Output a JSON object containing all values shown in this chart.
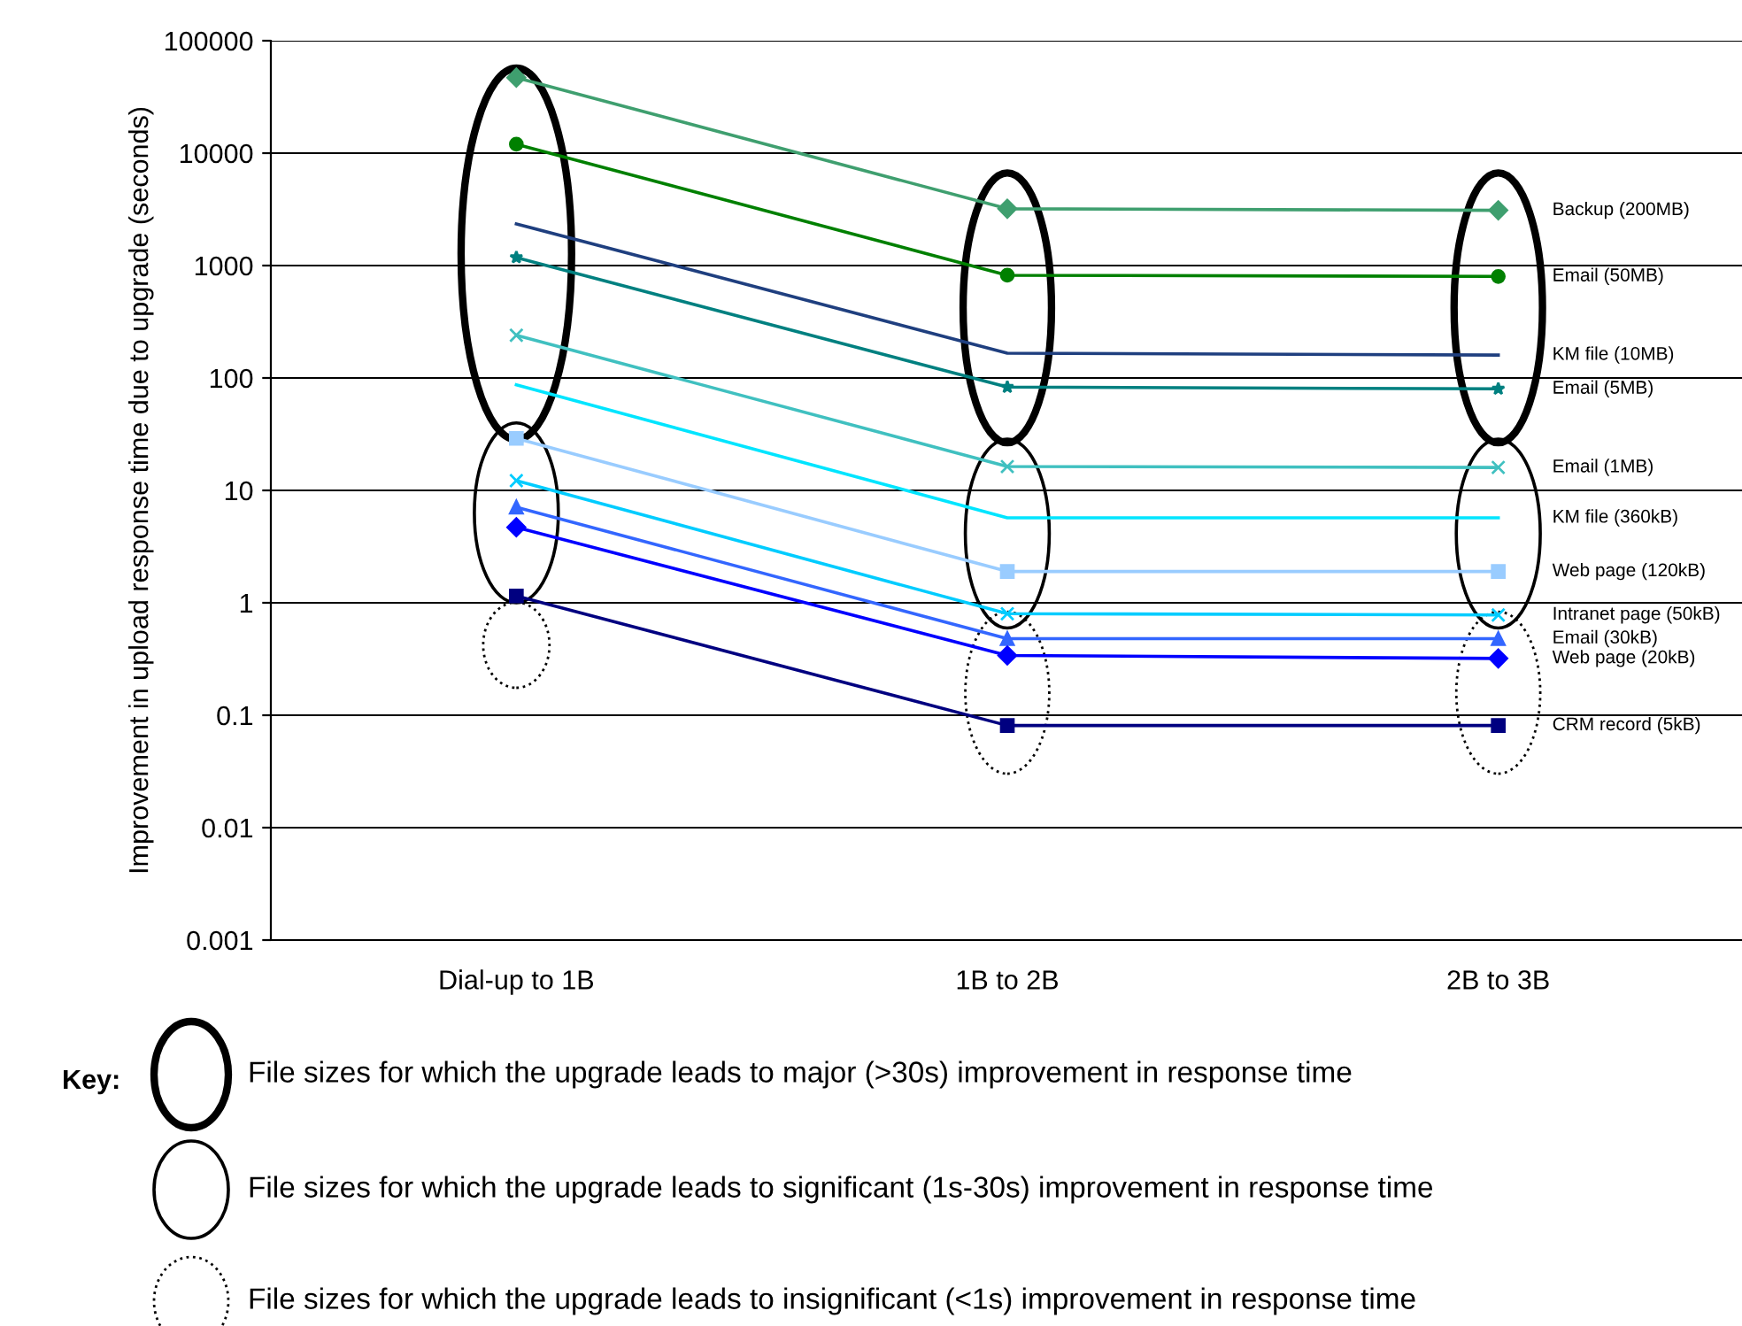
{
  "chart_data": {
    "type": "line",
    "ylabel": "Improvement in upload response time due to upgrade (seconds)",
    "categories": [
      "Dial-up to 1B",
      "1B to 2B",
      "2B to 3B"
    ],
    "log": "y",
    "ylim": [
      0.001,
      100000
    ],
    "yticks": [
      0.001,
      0.01,
      0.1,
      1,
      10,
      100,
      1000,
      10000,
      100000
    ],
    "grid": "y",
    "series": [
      {
        "name": "Backup (200MB)",
        "color": "#3f9f6f",
        "marker": "diamond",
        "values": [
          47000,
          3200,
          3100
        ]
      },
      {
        "name": "Email (50MB)",
        "color": "#008000",
        "marker": "circle",
        "values": [
          12000,
          820,
          800
        ]
      },
      {
        "name": "KM file (10MB)",
        "color": "#1f3f7f",
        "marker": "none",
        "values": [
          2350,
          166,
          160
        ]
      },
      {
        "name": "Email (5MB)",
        "color": "#008080",
        "marker": "star",
        "values": [
          1180,
          83,
          80
        ]
      },
      {
        "name": "Email (1MB)",
        "color": "#40c0c0",
        "marker": "cross",
        "values": [
          240,
          16.3,
          16
        ]
      },
      {
        "name": "KM file (360kB)",
        "color": "#00e5ff",
        "marker": "none",
        "values": [
          87,
          5.7,
          5.7
        ]
      },
      {
        "name": "Web page (120kB)",
        "color": "#99ccff",
        "marker": "square",
        "values": [
          29,
          1.9,
          1.9
        ]
      },
      {
        "name": "Intranet page (50kB)",
        "color": "#00ccff",
        "marker": "cross",
        "values": [
          12.2,
          0.8,
          0.78
        ]
      },
      {
        "name": "Email (30kB)",
        "color": "#3366ff",
        "marker": "triangle",
        "values": [
          7.1,
          0.48,
          0.48
        ]
      },
      {
        "name": "Web page (20kB)",
        "color": "#0000ff",
        "marker": "diamond",
        "values": [
          4.7,
          0.34,
          0.32
        ]
      },
      {
        "name": "CRM record (5kB)",
        "color": "#000080",
        "marker": "square",
        "values": [
          1.15,
          0.081,
          0.081
        ]
      }
    ],
    "annotations": [
      "Key:",
      "File sizes for which the upgrade leads to major (>30s) improvement in response time",
      "File sizes for which the upgrade leads to significant (1s-30s) improvement in response time",
      "File sizes for which the upgrade leads to insignificant (<1s) improvement in response time"
    ]
  }
}
